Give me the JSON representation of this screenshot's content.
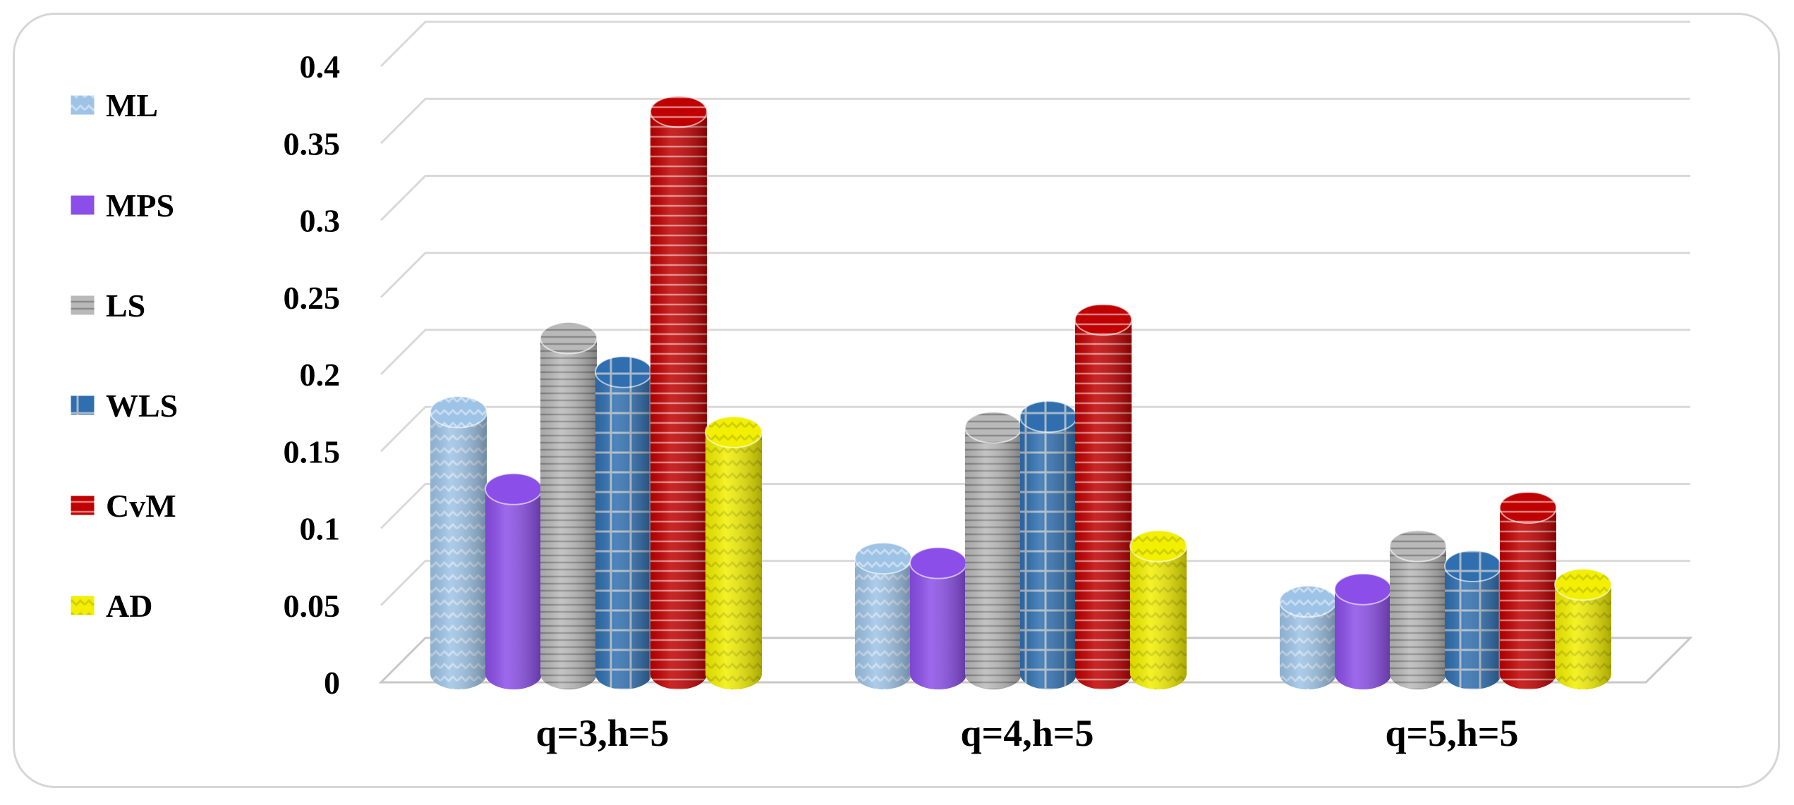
{
  "chart_data": {
    "type": "bar",
    "title": "",
    "xlabel": "",
    "ylabel": "",
    "categories": [
      "q=3,h=5",
      "q=4,h=5",
      "q=5,h=5"
    ],
    "ylim": [
      0,
      0.4
    ],
    "yticks": [
      "0",
      "0.05",
      "0.1",
      "0.15",
      "0.2",
      "0.25",
      "0.3",
      "0.35",
      "0.4"
    ],
    "legend_position": "left",
    "grid": true,
    "series": [
      {
        "name": "ML",
        "values": [
          0.17,
          0.075,
          0.047
        ],
        "color": "#9dc3e6"
      },
      {
        "name": "MPS",
        "values": [
          0.12,
          0.072,
          0.055
        ],
        "color": "#8b4ee8"
      },
      {
        "name": "LS",
        "values": [
          0.218,
          0.16,
          0.083
        ],
        "color": "#b5b5b5"
      },
      {
        "name": "WLS",
        "values": [
          0.196,
          0.167,
          0.07
        ],
        "color": "#2f6fb0"
      },
      {
        "name": "CvM",
        "values": [
          0.365,
          0.23,
          0.108
        ],
        "color": "#c00000"
      },
      {
        "name": "AD",
        "values": [
          0.157,
          0.083,
          0.058
        ],
        "color": "#f2ef00"
      }
    ]
  }
}
